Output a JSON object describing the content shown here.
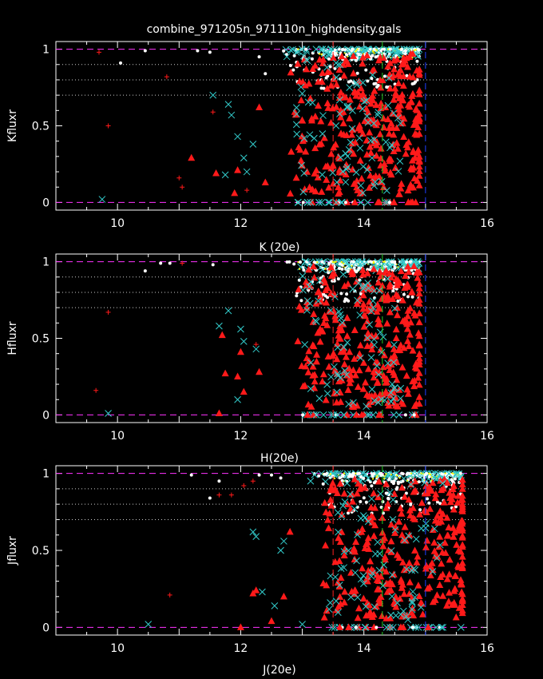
{
  "title": "combine_971205n_971110n_highdensity.gals",
  "colors": {
    "background": "#000000",
    "axes": "#ffffff",
    "limit_lines": "#ff33ff",
    "dotted_lines": "#cccccc",
    "red_cut": "#ff2020",
    "green_cut": "#22cc22",
    "blue_cut": "#2040ff",
    "triangle": "#ff1a1a",
    "plus": "#ff1a1a",
    "cross": "#33cccc",
    "dot": "#ffffff",
    "star": "#ffff00"
  },
  "chart_data": [
    {
      "type": "scatter",
      "xlabel": "K (20e)",
      "ylabel": "Kfluxr",
      "xlim": [
        9,
        16
      ],
      "ylim": [
        -0.05,
        1.05
      ],
      "xticks": [
        "10",
        "12",
        "14",
        "16"
      ],
      "yticks": [
        "0",
        "0.5",
        "1"
      ],
      "hlines_dashed": [
        0,
        1
      ],
      "hlines_dotted": [
        0.7,
        0.8,
        0.9
      ],
      "vlines": [
        {
          "x": 13.5,
          "color": "red"
        },
        {
          "x": 14.3,
          "color": "green"
        },
        {
          "x": 15.0,
          "color": "blue"
        }
      ],
      "mag_range": [
        12.3,
        14.9
      ],
      "series": [
        {
          "marker": "plus",
          "points": [
            [
              9.7,
              0.98
            ],
            [
              9.85,
              0.5
            ],
            [
              10.8,
              0.82
            ],
            [
              11.0,
              0.16
            ],
            [
              11.05,
              0.1
            ],
            [
              11.55,
              0.59
            ],
            [
              12.1,
              0.08
            ]
          ]
        },
        {
          "marker": "cross",
          "points": [
            [
              9.75,
              0.02
            ],
            [
              11.55,
              0.7
            ],
            [
              11.8,
              0.64
            ],
            [
              11.85,
              0.57
            ],
            [
              11.95,
              0.43
            ],
            [
              12.05,
              0.29
            ],
            [
              12.2,
              0.38
            ],
            [
              11.75,
              0.18
            ],
            [
              12.1,
              0.2
            ]
          ]
        },
        {
          "marker": "triangle",
          "points": [
            [
              11.2,
              0.29
            ],
            [
              11.6,
              0.19
            ],
            [
              11.9,
              0.06
            ],
            [
              11.95,
              0.21
            ],
            [
              12.3,
              0.62
            ],
            [
              12.4,
              0.13
            ]
          ]
        },
        {
          "marker": "dot",
          "points": [
            [
              10.05,
              0.91
            ],
            [
              10.45,
              0.99
            ],
            [
              11.3,
              0.99
            ],
            [
              11.5,
              0.98
            ],
            [
              12.3,
              0.95
            ],
            [
              12.4,
              0.84
            ]
          ]
        }
      ]
    },
    {
      "type": "scatter",
      "xlabel": "H(20e)",
      "ylabel": "Hfluxr",
      "xlim": [
        9,
        16
      ],
      "ylim": [
        -0.05,
        1.05
      ],
      "xticks": [
        "10",
        "12",
        "14",
        "16"
      ],
      "yticks": [
        "0",
        "0.5",
        "1"
      ],
      "hlines_dashed": [
        0,
        1
      ],
      "hlines_dotted": [
        0.7,
        0.8,
        0.9
      ],
      "vlines": [
        {
          "x": 13.5,
          "color": "red"
        },
        {
          "x": 14.3,
          "color": "green"
        },
        {
          "x": 15.0,
          "color": "blue"
        }
      ],
      "mag_range": [
        12.4,
        14.9
      ],
      "series": [
        {
          "marker": "plus",
          "points": [
            [
              9.65,
              0.16
            ],
            [
              9.85,
              0.67
            ],
            [
              11.05,
              0.99
            ],
            [
              12.25,
              0.46
            ]
          ]
        },
        {
          "marker": "cross",
          "points": [
            [
              9.85,
              0.01
            ],
            [
              11.65,
              0.58
            ],
            [
              11.8,
              0.68
            ],
            [
              12.0,
              0.56
            ],
            [
              12.05,
              0.48
            ],
            [
              11.95,
              0.1
            ],
            [
              12.25,
              0.43
            ]
          ]
        },
        {
          "marker": "triangle",
          "points": [
            [
              11.65,
              0.01
            ],
            [
              11.7,
              0.52
            ],
            [
              11.75,
              0.27
            ],
            [
              11.95,
              0.25
            ],
            [
              12.0,
              0.41
            ],
            [
              12.05,
              0.15
            ],
            [
              12.3,
              0.28
            ]
          ]
        },
        {
          "marker": "dot",
          "points": [
            [
              10.45,
              0.94
            ],
            [
              10.7,
              0.99
            ],
            [
              10.85,
              0.99
            ],
            [
              11.55,
              0.98
            ]
          ]
        }
      ]
    },
    {
      "type": "scatter",
      "xlabel": "J(20e)",
      "ylabel": "Jfluxr",
      "xlim": [
        9,
        16
      ],
      "ylim": [
        -0.05,
        1.05
      ],
      "xticks": [
        "10",
        "12",
        "14",
        "16"
      ],
      "yticks": [
        "0",
        "0.5",
        "1"
      ],
      "hlines_dashed": [
        0,
        1
      ],
      "hlines_dotted": [
        0.7,
        0.8,
        0.9
      ],
      "vlines": [
        {
          "x": 13.5,
          "color": "red"
        },
        {
          "x": 14.3,
          "color": "green"
        },
        {
          "x": 15.0,
          "color": "blue"
        }
      ],
      "mag_range": [
        12.8,
        15.6
      ],
      "series": [
        {
          "marker": "plus",
          "points": [
            [
              10.85,
              0.21
            ],
            [
              11.65,
              0.86
            ],
            [
              11.85,
              0.86
            ],
            [
              12.05,
              0.92
            ],
            [
              12.2,
              0.95
            ]
          ]
        },
        {
          "marker": "cross",
          "points": [
            [
              10.5,
              0.02
            ],
            [
              12.2,
              0.62
            ],
            [
              12.25,
              0.59
            ],
            [
              12.35,
              0.23
            ],
            [
              12.55,
              0.14
            ],
            [
              12.65,
              0.5
            ],
            [
              12.7,
              0.56
            ],
            [
              13.0,
              0.02
            ]
          ]
        },
        {
          "marker": "triangle",
          "points": [
            [
              12.0,
              0.0
            ],
            [
              12.2,
              0.22
            ],
            [
              12.25,
              0.24
            ],
            [
              12.5,
              0.04
            ],
            [
              12.7,
              0.2
            ],
            [
              12.8,
              0.62
            ]
          ]
        },
        {
          "marker": "dot",
          "points": [
            [
              11.2,
              0.99
            ],
            [
              11.5,
              0.84
            ],
            [
              11.65,
              0.95
            ],
            [
              12.3,
              0.99
            ],
            [
              12.5,
              0.99
            ],
            [
              12.65,
              0.97
            ]
          ]
        }
      ]
    }
  ]
}
